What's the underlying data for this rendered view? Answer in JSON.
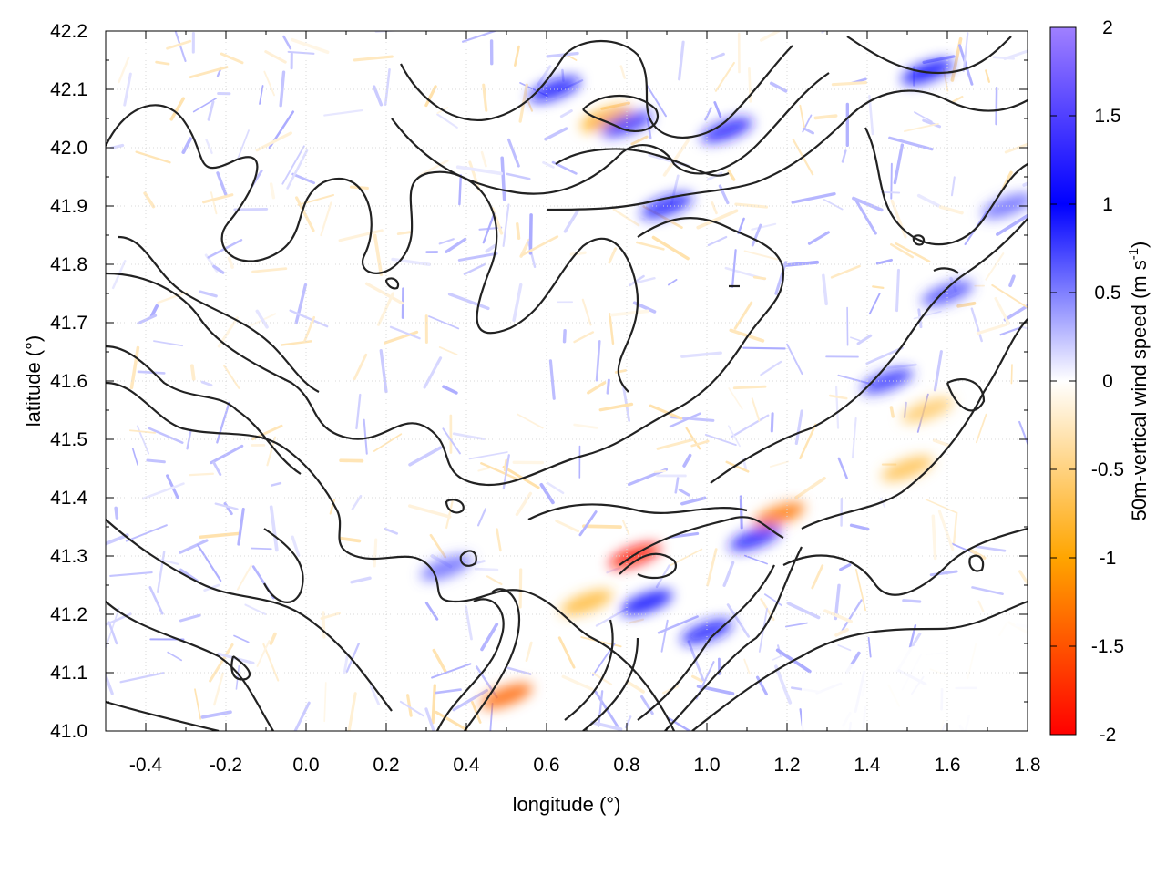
{
  "chart_data": {
    "type": "heatmap",
    "description_kind": "map of vertical wind speed with terrain contours",
    "xlabel": "longitude (°)",
    "ylabel": "latitude (°)",
    "xlim": [
      -0.5,
      1.8
    ],
    "ylim": [
      41.0,
      42.2
    ],
    "x_ticks": [
      "-0.4",
      "-0.2",
      "0.0",
      "0.2",
      "0.4",
      "0.6",
      "0.8",
      "1.0",
      "1.2",
      "1.4",
      "1.6",
      "1.8"
    ],
    "x_tick_values": [
      -0.4,
      -0.2,
      0.0,
      0.2,
      0.4,
      0.6,
      0.8,
      1.0,
      1.2,
      1.4,
      1.6,
      1.8
    ],
    "y_ticks": [
      "41.0",
      "41.1",
      "41.2",
      "41.3",
      "41.4",
      "41.5",
      "41.6",
      "41.7",
      "41.8",
      "41.9",
      "42.0",
      "42.1",
      "42.2"
    ],
    "y_tick_values": [
      41.0,
      41.1,
      41.2,
      41.3,
      41.4,
      41.5,
      41.6,
      41.7,
      41.8,
      41.9,
      42.0,
      42.1,
      42.2
    ],
    "grid": true,
    "colorbar": {
      "label": "50m-vertical wind speed (m s",
      "label_superscript": "-1",
      "label_close": ")",
      "range": [
        -2,
        2
      ],
      "ticks": [
        "2",
        "1.5",
        "1",
        "0.5",
        "0",
        "-0.5",
        "-1",
        "-1.5",
        "-2"
      ],
      "tick_values": [
        2,
        1.5,
        1,
        0.5,
        0,
        -0.5,
        -1,
        -1.5,
        -2
      ],
      "palette": [
        {
          "value": -2,
          "color": "#ff0000"
        },
        {
          "value": -1,
          "color": "#ffa500"
        },
        {
          "value": 0,
          "color": "#ffffff"
        },
        {
          "value": 1,
          "color": "#0000ff"
        },
        {
          "value": 2,
          "color": "#a080ff"
        }
      ]
    },
    "hotspots": [
      {
        "lon": 0.82,
        "lat": 41.3,
        "value": -1.9
      },
      {
        "lon": 1.18,
        "lat": 41.37,
        "value": -1.3
      },
      {
        "lon": 0.5,
        "lat": 41.06,
        "value": -1.4
      },
      {
        "lon": 0.75,
        "lat": 42.05,
        "value": -1.0
      },
      {
        "lon": 1.12,
        "lat": 41.33,
        "value": 1.2
      },
      {
        "lon": 0.8,
        "lat": 42.04,
        "value": 1.3
      },
      {
        "lon": 1.05,
        "lat": 42.03,
        "value": 1.2
      },
      {
        "lon": 1.55,
        "lat": 42.13,
        "value": 1.0
      },
      {
        "lon": 0.62,
        "lat": 42.1,
        "value": 1.1
      },
      {
        "lon": 0.85,
        "lat": 41.22,
        "value": 1.0
      },
      {
        "lon": 1.0,
        "lat": 41.17,
        "value": 0.9
      },
      {
        "lon": 1.45,
        "lat": 41.6,
        "value": 0.8
      },
      {
        "lon": 1.6,
        "lat": 41.75,
        "value": 0.7
      },
      {
        "lon": 1.75,
        "lat": 41.9,
        "value": 0.6
      },
      {
        "lon": 0.9,
        "lat": 41.9,
        "value": 0.9
      },
      {
        "lon": 0.35,
        "lat": 41.28,
        "value": 0.6
      },
      {
        "lon": 0.7,
        "lat": 41.22,
        "value": -0.8
      },
      {
        "lon": 1.5,
        "lat": 41.45,
        "value": -0.7
      },
      {
        "lon": 1.55,
        "lat": 41.55,
        "value": -0.6
      }
    ]
  }
}
